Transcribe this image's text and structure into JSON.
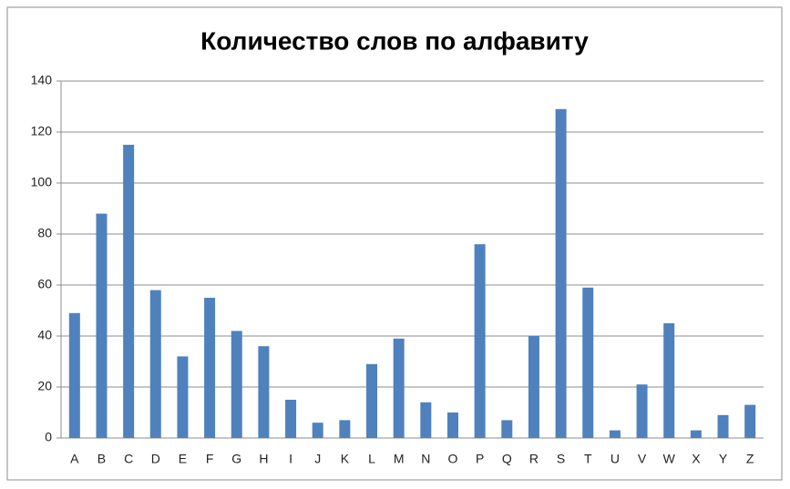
{
  "chart_data": {
    "type": "bar",
    "title": "Количество слов по алфавиту",
    "categories": [
      "A",
      "B",
      "C",
      "D",
      "E",
      "F",
      "G",
      "H",
      "I",
      "J",
      "K",
      "L",
      "M",
      "N",
      "O",
      "P",
      "Q",
      "R",
      "S",
      "T",
      "U",
      "V",
      "W",
      "X",
      "Y",
      "Z"
    ],
    "values": [
      49,
      88,
      115,
      58,
      32,
      55,
      42,
      36,
      15,
      6,
      7,
      29,
      39,
      14,
      10,
      76,
      7,
      40,
      129,
      59,
      3,
      21,
      45,
      3,
      9,
      13
    ],
    "color": "#4f81bd",
    "ylim": [
      0,
      140
    ],
    "yticks": [
      0,
      20,
      40,
      60,
      80,
      100,
      120,
      140
    ],
    "grid": true
  }
}
